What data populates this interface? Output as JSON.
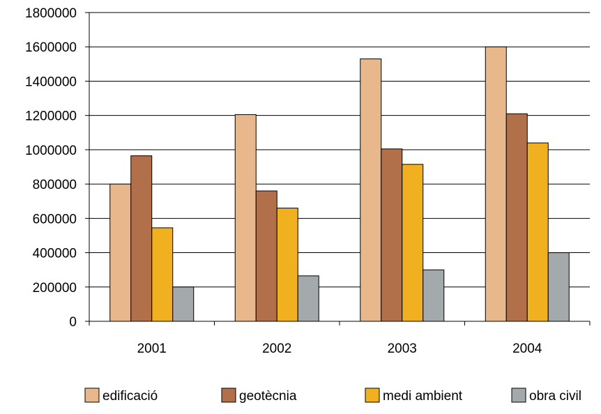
{
  "chart_data": {
    "type": "bar",
    "categories": [
      "2001",
      "2002",
      "2003",
      "2004"
    ],
    "series": [
      {
        "name": "edificació",
        "color": "#E8B88C",
        "values": [
          800000,
          1205000,
          1530000,
          1600000
        ]
      },
      {
        "name": "geotècnia",
        "color": "#B2704A",
        "values": [
          965000,
          760000,
          1005000,
          1210000
        ]
      },
      {
        "name": "medi ambient",
        "color": "#F0B020",
        "values": [
          545000,
          660000,
          915000,
          1040000
        ]
      },
      {
        "name": "obra civil",
        "color": "#A4A9AC",
        "values": [
          200000,
          265000,
          300000,
          400000
        ]
      }
    ],
    "ylim": [
      0,
      1800000
    ],
    "yticks": [
      "0",
      "200000",
      "400000",
      "600000",
      "800000",
      "1000000",
      "1200000",
      "1400000",
      "1600000",
      "1800000"
    ],
    "grid": true,
    "legend_position": "bottom"
  }
}
